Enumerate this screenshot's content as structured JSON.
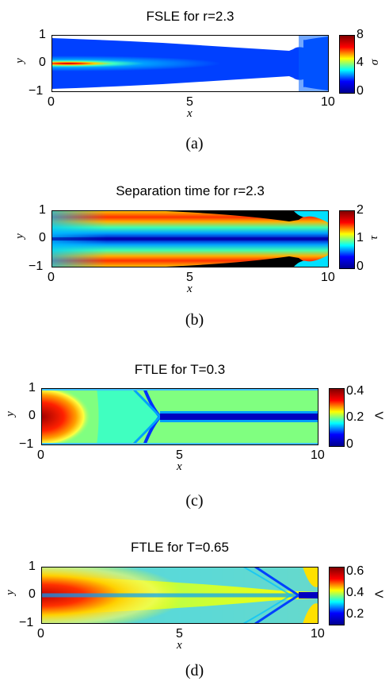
{
  "chart_data": [
    {
      "type": "heatmap",
      "title": "FSLE for r=2.3",
      "xlabel": "x",
      "ylabel": "y",
      "xlim": [
        0,
        10
      ],
      "ylim": [
        -1,
        1
      ],
      "xticks": [
        "0",
        "5",
        "10"
      ],
      "yticks": [
        "1",
        "0",
        "−1"
      ],
      "colorbar": {
        "label": "σ",
        "range": [
          0,
          8
        ],
        "ticks": [
          "8",
          "4",
          "0"
        ]
      },
      "caption": "(a)"
    },
    {
      "type": "heatmap",
      "title": "Separation time for r=2.3",
      "xlabel": "x",
      "ylabel": "y",
      "xlim": [
        0,
        10
      ],
      "ylim": [
        -1,
        1
      ],
      "xticks": [
        "0",
        "5",
        "10"
      ],
      "yticks": [
        "1",
        "0",
        "−1"
      ],
      "colorbar": {
        "label": "τ",
        "range": [
          0,
          2
        ],
        "ticks": [
          "2",
          "1",
          "0"
        ]
      },
      "caption": "(b)"
    },
    {
      "type": "heatmap",
      "title": "FTLE for T=0.3",
      "xlabel": "x",
      "ylabel": "y",
      "xlim": [
        0,
        10
      ],
      "ylim": [
        -1,
        1
      ],
      "xticks": [
        "0",
        "5",
        "10"
      ],
      "yticks": [
        "1",
        "0",
        "−1"
      ],
      "colorbar": {
        "label": "Λ",
        "range": [
          0,
          0.45
        ],
        "ticks": [
          "0.4",
          "0.2",
          "0"
        ]
      },
      "caption": "(c)"
    },
    {
      "type": "heatmap",
      "title": "FTLE for T=0.65",
      "xlabel": "x",
      "ylabel": "y",
      "xlim": [
        0,
        10
      ],
      "ylim": [
        -1,
        1
      ],
      "xticks": [
        "0",
        "5",
        "10"
      ],
      "yticks": [
        "1",
        "0",
        "−1"
      ],
      "colorbar": {
        "label": "Λ",
        "range": [
          0.05,
          0.7
        ],
        "ticks": [
          "0.6",
          "0.4",
          "0.2"
        ]
      },
      "caption": "(d)"
    }
  ]
}
